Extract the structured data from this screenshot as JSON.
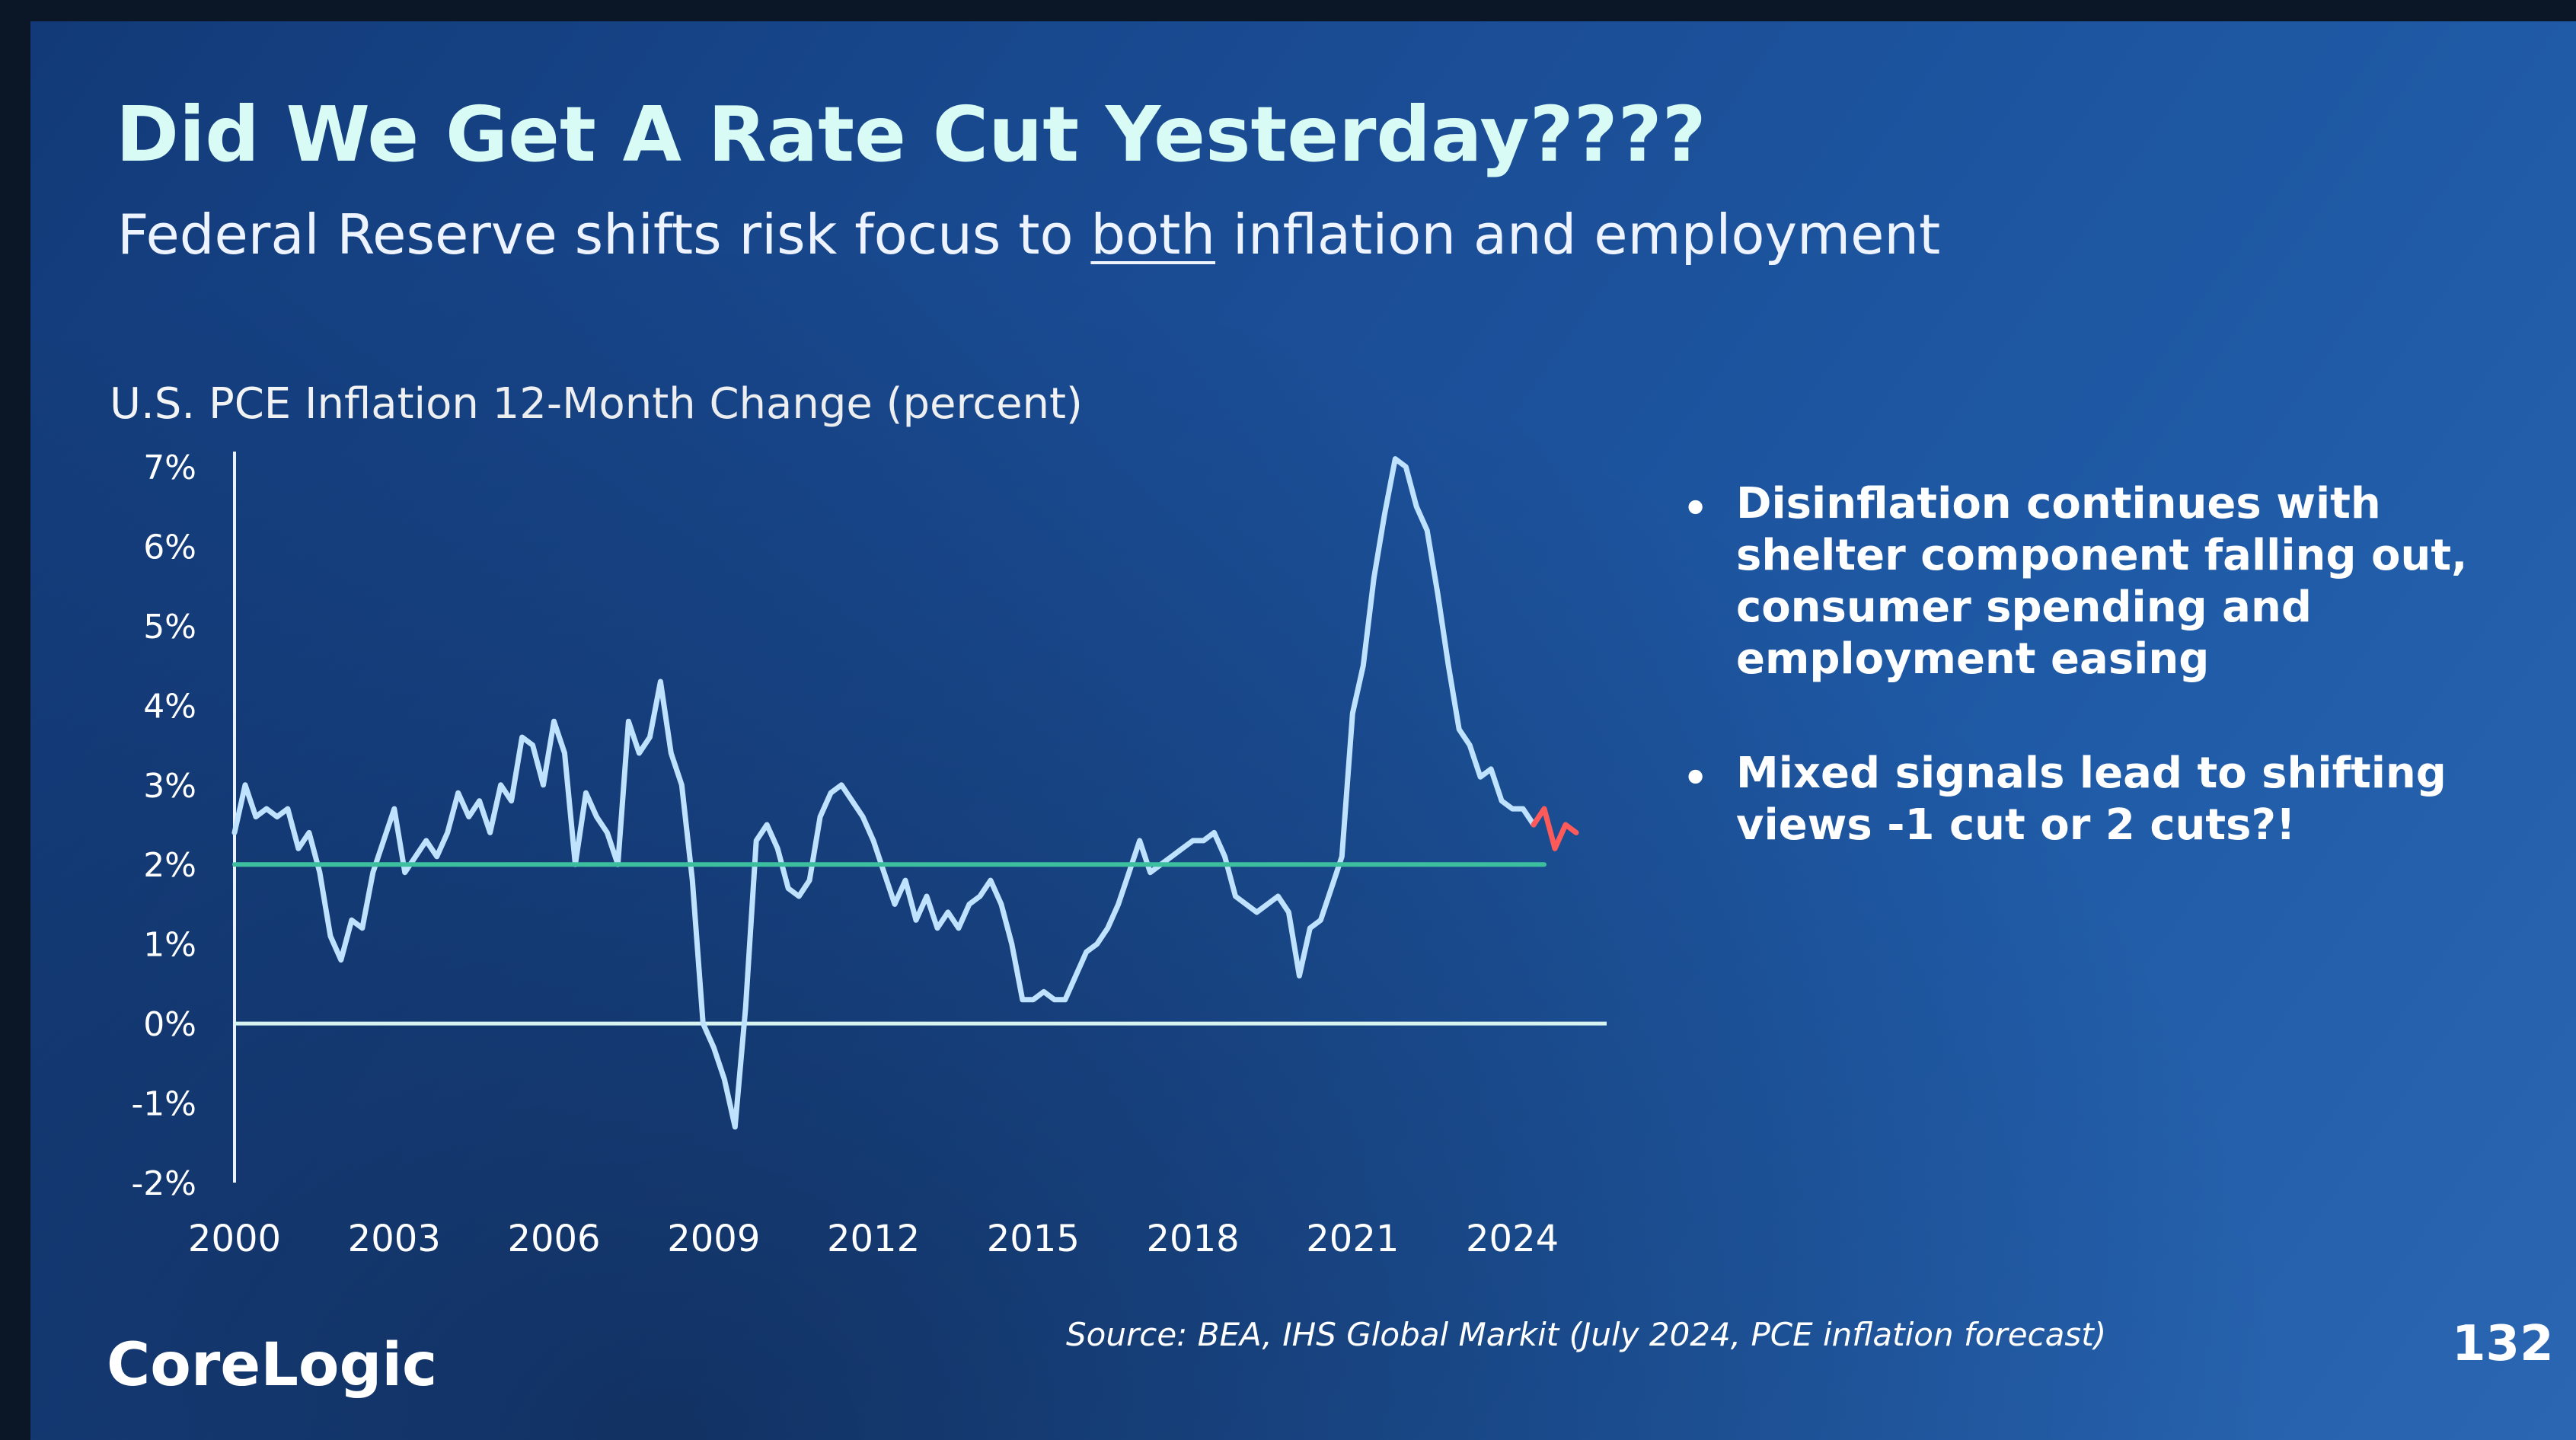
{
  "slide": {
    "title": "Did We Get A Rate Cut Yesterday????",
    "subtitle_before": "Federal Reserve shifts risk focus to ",
    "subtitle_emphasis": "both",
    "subtitle_after": " inflation and employment",
    "bullets": [
      "Disinflation continues with shelter component falling out, consumer spending and employment easing",
      "Mixed signals lead to shifting views -1 cut or 2 cuts?!"
    ],
    "source": "Source: BEA, IHS Global Markit (July 2024, PCE inflation forecast)",
    "logo": "CoreLogic",
    "page_number": "132"
  },
  "colors": {
    "actual": "#bfe3ff",
    "forecast": "#ff5a5a",
    "target": "#3dbf9f",
    "zero_line": "#d8f4f0",
    "axis": "#e8f2ff",
    "title": "#d8fbf6"
  },
  "chart_data": {
    "type": "line",
    "title": "U.S. PCE Inflation 12-Month Change (percent)",
    "xlabel": "",
    "ylabel": "",
    "xlim": [
      2000,
      2025.2
    ],
    "ylim": [
      -2,
      7
    ],
    "grid": false,
    "x_ticks": [
      "2000",
      "2003",
      "2006",
      "2009",
      "2012",
      "2015",
      "2018",
      "2021",
      "2024"
    ],
    "y_ticks": [
      "7%",
      "6%",
      "5%",
      "4%",
      "3%",
      "2%",
      "1%",
      "0%",
      "-1%",
      "-2%"
    ],
    "series": [
      {
        "role": "actual",
        "x": [
          2000.0,
          2000.2,
          2000.4,
          2000.6,
          2000.8,
          2001.0,
          2001.2,
          2001.4,
          2001.6,
          2001.8,
          2002.0,
          2002.2,
          2002.4,
          2002.6,
          2002.8,
          2003.0,
          2003.2,
          2003.4,
          2003.6,
          2003.8,
          2004.0,
          2004.2,
          2004.4,
          2004.6,
          2004.8,
          2005.0,
          2005.2,
          2005.4,
          2005.6,
          2005.8,
          2006.0,
          2006.2,
          2006.4,
          2006.6,
          2006.8,
          2007.0,
          2007.2,
          2007.4,
          2007.6,
          2007.8,
          2008.0,
          2008.2,
          2008.4,
          2008.6,
          2008.8,
          2009.0,
          2009.2,
          2009.4,
          2009.6,
          2009.8,
          2010.0,
          2010.2,
          2010.4,
          2010.6,
          2010.8,
          2011.0,
          2011.2,
          2011.4,
          2011.6,
          2011.8,
          2012.0,
          2012.2,
          2012.4,
          2012.6,
          2012.8,
          2013.0,
          2013.2,
          2013.4,
          2013.6,
          2013.8,
          2014.0,
          2014.2,
          2014.4,
          2014.6,
          2014.8,
          2015.0,
          2015.2,
          2015.4,
          2015.6,
          2015.8,
          2016.0,
          2016.2,
          2016.4,
          2016.6,
          2016.8,
          2017.0,
          2017.2,
          2017.4,
          2017.6,
          2017.8,
          2018.0,
          2018.2,
          2018.4,
          2018.6,
          2018.8,
          2019.0,
          2019.2,
          2019.4,
          2019.6,
          2019.8,
          2020.0,
          2020.2,
          2020.4,
          2020.6,
          2020.8,
          2021.0,
          2021.2,
          2021.4,
          2021.6,
          2021.8,
          2022.0,
          2022.2,
          2022.4,
          2022.6,
          2022.8,
          2023.0,
          2023.2,
          2023.4,
          2023.6,
          2023.8,
          2024.0,
          2024.2,
          2024.4
        ],
        "y": [
          2.4,
          3.0,
          2.6,
          2.7,
          2.6,
          2.7,
          2.2,
          2.4,
          1.9,
          1.1,
          0.8,
          1.3,
          1.2,
          1.9,
          2.3,
          2.7,
          1.9,
          2.1,
          2.3,
          2.1,
          2.4,
          2.9,
          2.6,
          2.8,
          2.4,
          3.0,
          2.8,
          3.6,
          3.5,
          3.0,
          3.8,
          3.4,
          2.0,
          2.9,
          2.6,
          2.4,
          2.0,
          3.8,
          3.4,
          3.6,
          4.3,
          3.4,
          3.0,
          1.8,
          0.0,
          -0.3,
          -0.7,
          -1.3,
          0.2,
          2.3,
          2.5,
          2.2,
          1.7,
          1.6,
          1.8,
          2.6,
          2.9,
          3.0,
          2.8,
          2.6,
          2.3,
          1.9,
          1.5,
          1.8,
          1.3,
          1.6,
          1.2,
          1.4,
          1.2,
          1.5,
          1.6,
          1.8,
          1.5,
          1.0,
          0.3,
          0.3,
          0.4,
          0.3,
          0.3,
          0.6,
          0.9,
          1.0,
          1.2,
          1.5,
          1.9,
          2.3,
          1.9,
          2.0,
          2.1,
          2.2,
          2.3,
          2.3,
          2.4,
          2.1,
          1.6,
          1.5,
          1.4,
          1.5,
          1.6,
          1.4,
          0.6,
          1.2,
          1.3,
          1.7,
          2.1,
          3.9,
          4.5,
          5.6,
          6.4,
          7.1,
          7.0,
          6.5,
          6.2,
          5.4,
          4.5,
          3.7,
          3.5,
          3.1,
          3.2,
          2.8,
          2.7,
          2.7,
          2.5
        ]
      },
      {
        "role": "forecast",
        "x": [
          2024.4,
          2024.6,
          2024.8,
          2025.0,
          2025.2
        ],
        "y": [
          2.5,
          2.7,
          2.2,
          2.5,
          2.4
        ]
      },
      {
        "role": "target",
        "x": [
          2000,
          2024.6
        ],
        "y": [
          2.0,
          2.0
        ]
      }
    ]
  }
}
